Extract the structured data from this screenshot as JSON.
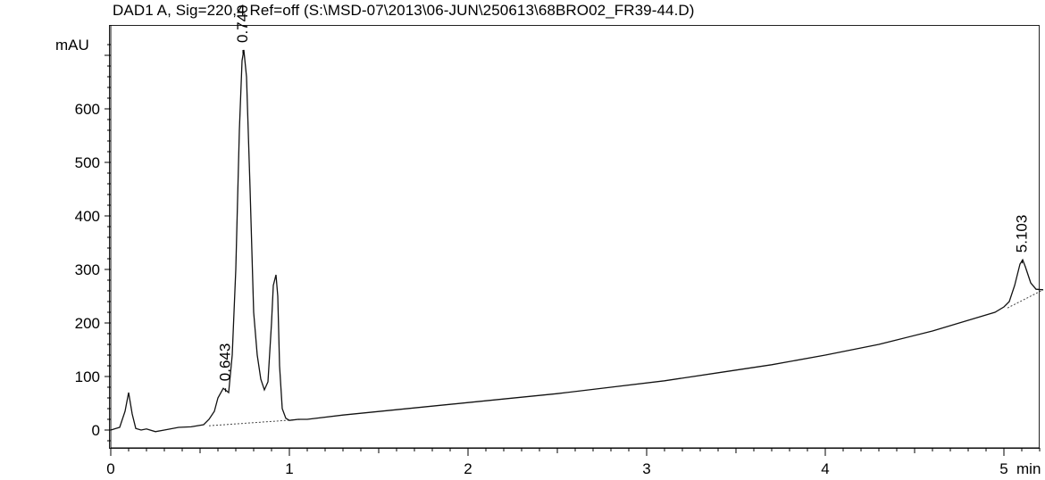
{
  "chart_data": {
    "type": "line",
    "title": "DAD1 A, Sig=220,4 Ref=off (S:\\MSD-07\\2013\\06-JUN\\250613\\68BRO02_FR39-44.D)",
    "ylabel": "mAU",
    "xlabel": "min",
    "xlim": [
      0,
      5.22
    ],
    "ylim": [
      -38,
      745
    ],
    "x_ticks": [
      0,
      1,
      2,
      3,
      4,
      5
    ],
    "y_ticks": [
      0,
      100,
      200,
      300,
      400,
      500,
      600
    ],
    "grid": false,
    "series": [
      {
        "values_note": "",
        "x": [
          0,
          0.05,
          0.08,
          0.1,
          0.12,
          0.14,
          0.17,
          0.2,
          0.25,
          0.3,
          0.38,
          0.45,
          0.52,
          0.55,
          0.58,
          0.6,
          0.63,
          0.66,
          0.68,
          0.7,
          0.72,
          0.735,
          0.745,
          0.76,
          0.78,
          0.8,
          0.82,
          0.84,
          0.86,
          0.88,
          0.9,
          0.91,
          0.925,
          0.935,
          0.945,
          0.96,
          0.98,
          1.0,
          1.05,
          1.1,
          1.3,
          1.6,
          1.9,
          2.2,
          2.5,
          2.8,
          3.1,
          3.4,
          3.7,
          4.0,
          4.3,
          4.6,
          4.8,
          4.95,
          5.0,
          5.03,
          5.06,
          5.09,
          5.105,
          5.12,
          5.15,
          5.18,
          5.22
        ],
        "y": [
          0,
          5,
          35,
          70,
          30,
          3,
          0,
          2,
          -3,
          0,
          5,
          6,
          10,
          20,
          35,
          60,
          78,
          70,
          140,
          300,
          560,
          690,
          710,
          660,
          450,
          220,
          140,
          95,
          75,
          90,
          200,
          270,
          290,
          250,
          120,
          40,
          22,
          18,
          20,
          20,
          28,
          38,
          48,
          58,
          68,
          80,
          92,
          107,
          122,
          140,
          160,
          185,
          205,
          220,
          230,
          240,
          270,
          310,
          318,
          305,
          275,
          263,
          262
        ]
      }
    ],
    "peak_labels": [
      {
        "label": "0.643",
        "x": 0.643,
        "y": 78
      },
      {
        "label": "0.740",
        "x": 0.74,
        "y": 710
      },
      {
        "label": "5.103",
        "x": 5.103,
        "y": 318
      }
    ],
    "baselines": [
      {
        "x1": 0.55,
        "y1": 8,
        "x2": 1.07,
        "y2": 20
      },
      {
        "x1": 5.02,
        "y1": 228,
        "x2": 5.22,
        "y2": 262
      }
    ]
  }
}
